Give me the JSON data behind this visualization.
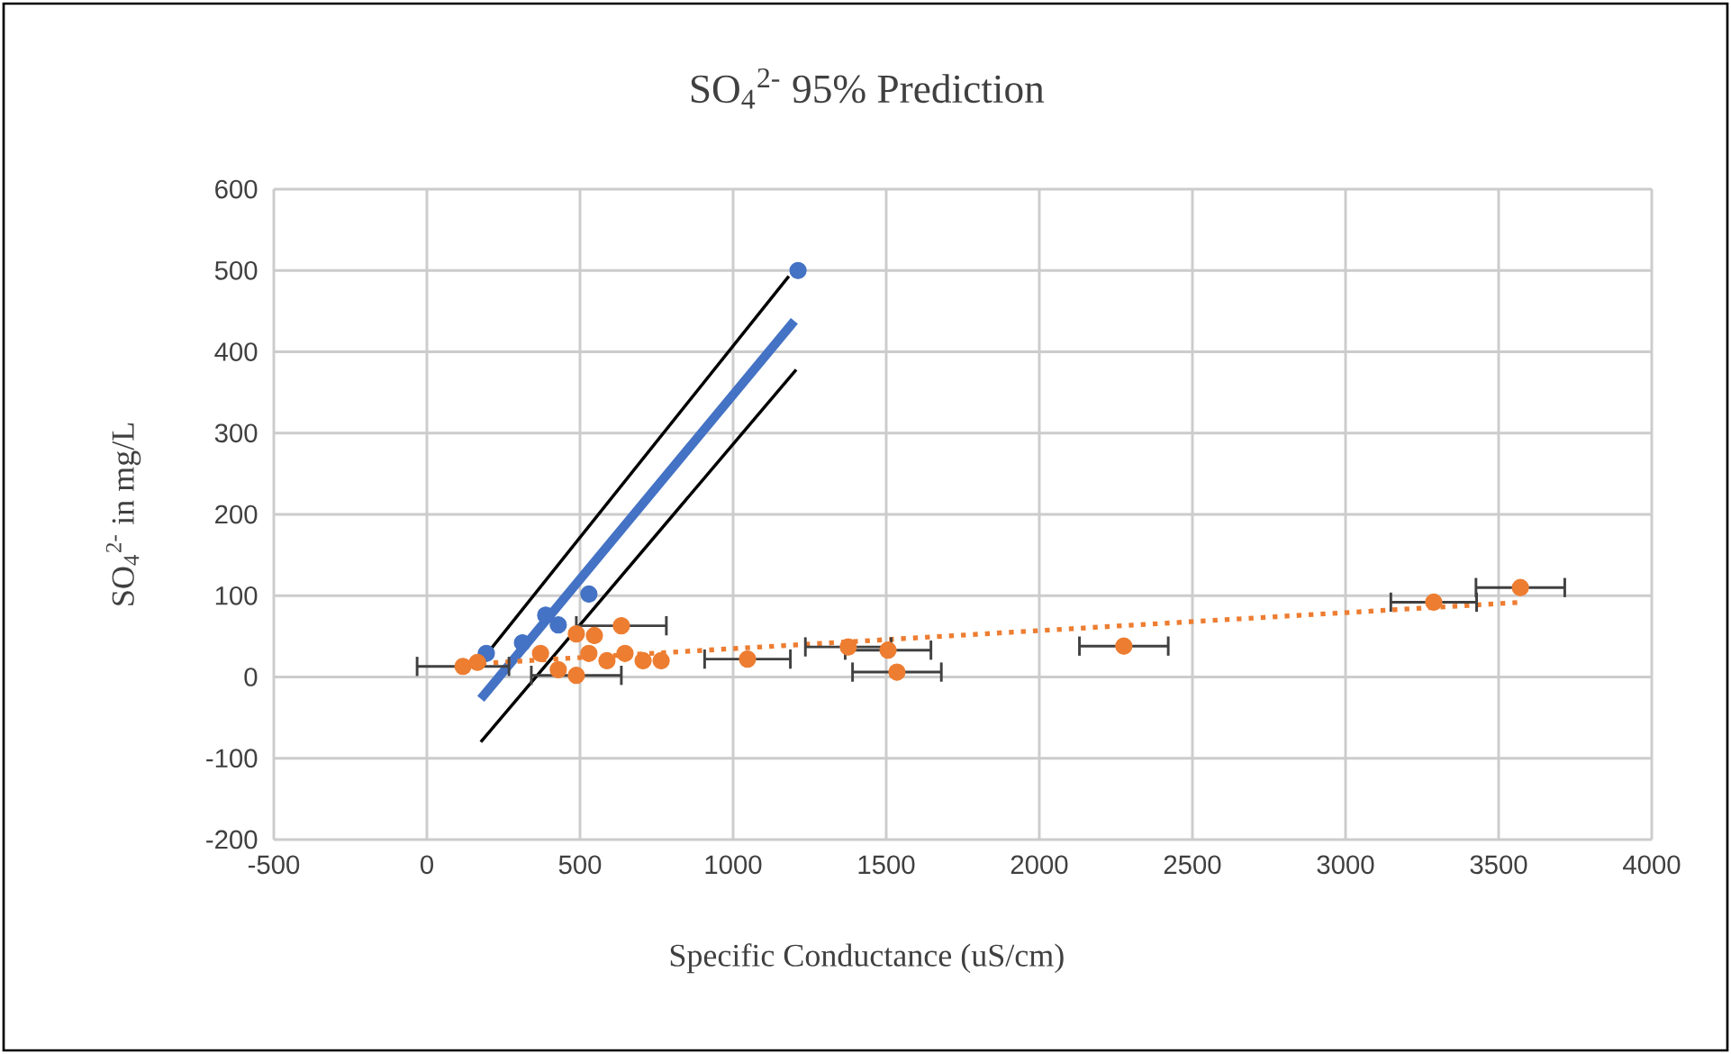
{
  "chart_data": {
    "type": "scatter",
    "title": "SO$_{4}$$^{2-}$  95% Prediction",
    "xlabel": "Specific Conductance (uS/cm)",
    "ylabel": "SO$_{4}$$^{2-}$ in mg/L",
    "xlim": [
      -500,
      4000
    ],
    "ylim": [
      -200,
      600
    ],
    "xticks": [
      -500,
      0,
      500,
      1000,
      1500,
      2000,
      2500,
      3000,
      3500,
      4000
    ],
    "yticks": [
      -200,
      -100,
      0,
      100,
      200,
      300,
      400,
      500,
      600
    ],
    "grid": true,
    "series": [
      {
        "type": "line",
        "color": "#000000",
        "x": [
          176,
          1182
        ],
        "values": [
          19,
          493
        ],
        "marker": "none",
        "line_style": "solid"
      },
      {
        "type": "line",
        "color": "#000000",
        "x": [
          176,
          1206
        ],
        "values": [
          -80,
          378
        ],
        "marker": "none",
        "line_style": "solid"
      },
      {
        "color": "#4472c4",
        "x": [
          194,
          312,
          388,
          429,
          529,
          1212
        ],
        "values": [
          29,
          42,
          76,
          64,
          102,
          500
        ],
        "marker": "circle"
      },
      {
        "type": "line",
        "color": "#4472c4",
        "x": [
          176,
          1200
        ],
        "values": [
          -27,
          438
        ],
        "marker": "none",
        "line_style": "solid"
      },
      {
        "type": "line",
        "color": "#ed7d31",
        "x": [
          100,
          3580
        ],
        "values": [
          15,
          92
        ],
        "marker": "none",
        "line_style": "dotted"
      },
      {
        "color": "#ed7d31",
        "x": [
          118,
          165,
          371,
          429,
          488,
          488,
          529,
          547,
          588,
          635,
          647,
          706,
          765,
          1047,
          1376,
          1506,
          1535,
          2276,
          3288,
          3571
        ],
        "values": [
          13,
          18,
          29,
          9,
          2,
          53,
          29,
          51,
          20,
          63,
          29,
          20,
          20,
          22,
          37,
          33,
          6,
          38,
          92,
          110
        ],
        "xerrors": [
          150,
          null,
          null,
          null,
          147,
          null,
          null,
          null,
          null,
          147,
          null,
          null,
          null,
          140,
          140,
          140,
          145,
          145,
          140,
          145
        ],
        "marker": "circle"
      }
    ]
  }
}
